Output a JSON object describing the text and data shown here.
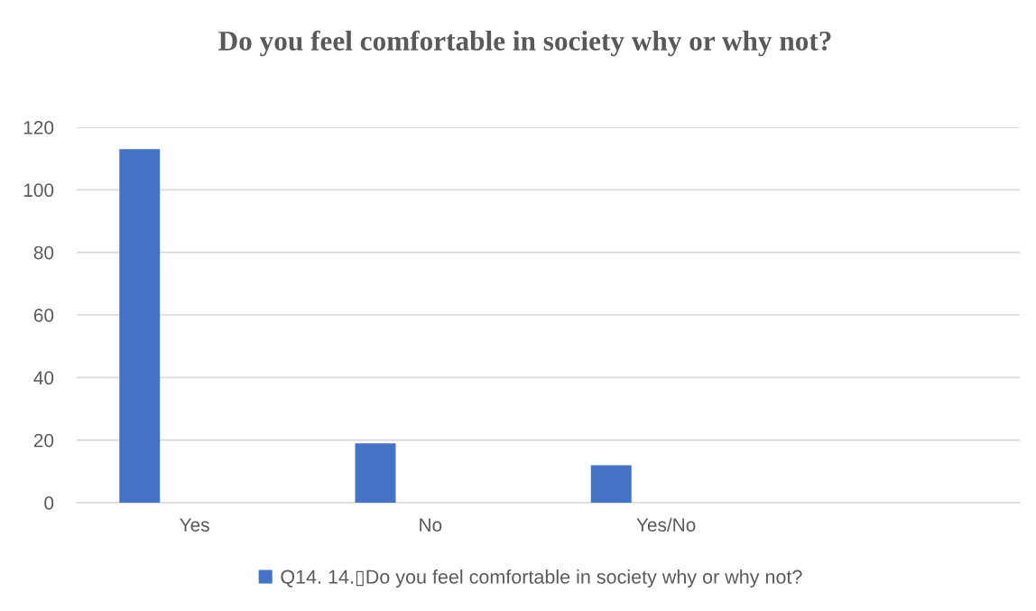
{
  "chart_data": {
    "type": "bar",
    "title": "Do you feel comfortable in society why or why not?",
    "categories": [
      "Yes",
      "No",
      "Yes/No",
      null
    ],
    "series": [
      {
        "name": "Q14. 14.▯Do you feel comfortable in society why or why not?",
        "color": "#4472c4",
        "values": [
          113,
          19,
          12,
          null
        ]
      }
    ],
    "ylim": [
      0,
      120
    ],
    "yticks": [
      0,
      20,
      40,
      60,
      80,
      100,
      120
    ],
    "grid": "y",
    "legend": "bottom"
  }
}
